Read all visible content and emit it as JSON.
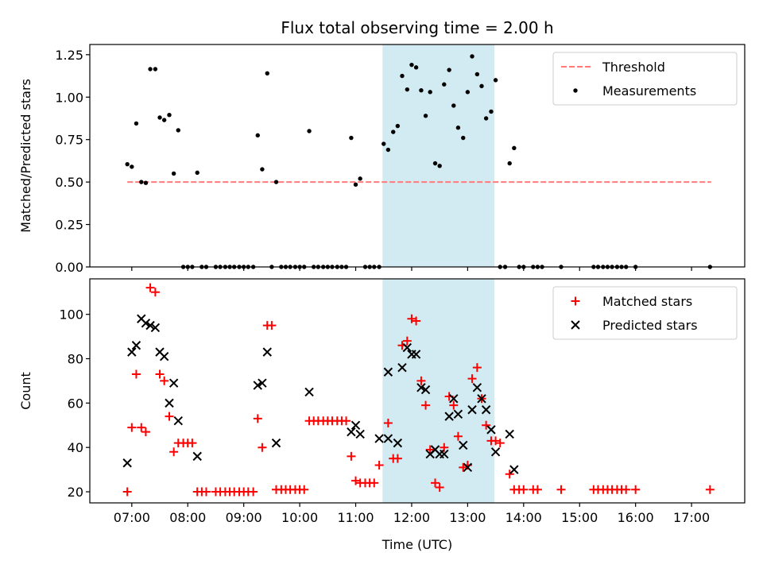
{
  "chart_data": [
    {
      "type": "scatter",
      "title": "Flux total observing time = 2.00 h",
      "xlabel": "",
      "ylabel": "Matched/Predicted stars",
      "x_unit": "hours_utc",
      "xlim": [
        6.25,
        17.95
      ],
      "ylim": [
        0.0,
        1.31
      ],
      "yticks": [
        0.0,
        0.25,
        0.5,
        0.75,
        1.0,
        1.25
      ],
      "ytick_labels": [
        "0.00",
        "0.25",
        "0.50",
        "0.75",
        "1.00",
        "1.25"
      ],
      "shaded_span": [
        11.48,
        13.48
      ],
      "legend": {
        "position": "top-right",
        "entries": [
          "Threshold",
          "Measurements"
        ]
      },
      "threshold": {
        "name": "Threshold",
        "x": [
          6.92,
          17.35
        ],
        "y": 0.5,
        "color": "#ff7b7b"
      },
      "series": [
        {
          "name": "Measurements",
          "marker": "dot",
          "color": "#000000",
          "points": [
            [
              6.92,
              0.605
            ],
            [
              7.0,
              0.59
            ],
            [
              7.08,
              0.845
            ],
            [
              7.17,
              0.5
            ],
            [
              7.25,
              0.495
            ],
            [
              7.33,
              1.165
            ],
            [
              7.42,
              1.165
            ],
            [
              7.5,
              0.88
            ],
            [
              7.58,
              0.865
            ],
            [
              7.67,
              0.895
            ],
            [
              7.75,
              0.55
            ],
            [
              7.83,
              0.805
            ],
            [
              7.92,
              0.0
            ],
            [
              8.0,
              0.0
            ],
            [
              8.08,
              0.0
            ],
            [
              8.17,
              0.555
            ],
            [
              8.25,
              0.0
            ],
            [
              8.33,
              0.0
            ],
            [
              8.5,
              0.0
            ],
            [
              8.58,
              0.0
            ],
            [
              8.67,
              0.0
            ],
            [
              8.75,
              0.0
            ],
            [
              8.83,
              0.0
            ],
            [
              8.92,
              0.0
            ],
            [
              9.0,
              0.0
            ],
            [
              9.08,
              0.0
            ],
            [
              9.17,
              0.0
            ],
            [
              9.25,
              0.775
            ],
            [
              9.33,
              0.575
            ],
            [
              9.42,
              1.14
            ],
            [
              9.5,
              0.0
            ],
            [
              9.58,
              0.5
            ],
            [
              9.67,
              0.0
            ],
            [
              9.75,
              0.0
            ],
            [
              9.83,
              0.0
            ],
            [
              9.92,
              0.0
            ],
            [
              10.0,
              0.0
            ],
            [
              10.08,
              0.0
            ],
            [
              10.17,
              0.8
            ],
            [
              10.25,
              0.0
            ],
            [
              10.33,
              0.0
            ],
            [
              10.42,
              0.0
            ],
            [
              10.5,
              0.0
            ],
            [
              10.58,
              0.0
            ],
            [
              10.67,
              0.0
            ],
            [
              10.75,
              0.0
            ],
            [
              10.83,
              0.0
            ],
            [
              10.92,
              0.76
            ],
            [
              11.0,
              0.485
            ],
            [
              11.08,
              0.52
            ],
            [
              11.17,
              0.0
            ],
            [
              11.25,
              0.0
            ],
            [
              11.33,
              0.0
            ],
            [
              11.42,
              0.0
            ],
            [
              11.5,
              0.725
            ],
            [
              11.58,
              0.69
            ],
            [
              11.67,
              0.795
            ],
            [
              11.75,
              0.83
            ],
            [
              11.83,
              1.125
            ],
            [
              11.92,
              1.045
            ],
            [
              12.0,
              1.19
            ],
            [
              12.08,
              1.175
            ],
            [
              12.17,
              1.04
            ],
            [
              12.25,
              0.89
            ],
            [
              12.33,
              1.03
            ],
            [
              12.42,
              0.61
            ],
            [
              12.5,
              0.595
            ],
            [
              12.58,
              1.075
            ],
            [
              12.67,
              1.16
            ],
            [
              12.75,
              0.95
            ],
            [
              12.83,
              0.82
            ],
            [
              12.92,
              0.76
            ],
            [
              13.0,
              1.03
            ],
            [
              13.08,
              1.24
            ],
            [
              13.17,
              1.135
            ],
            [
              13.25,
              1.065
            ],
            [
              13.33,
              0.875
            ],
            [
              13.42,
              0.915
            ],
            [
              13.5,
              1.1
            ],
            [
              13.58,
              0.0
            ],
            [
              13.67,
              0.0
            ],
            [
              13.75,
              0.61
            ],
            [
              13.83,
              0.7
            ],
            [
              13.92,
              0.0
            ],
            [
              14.0,
              0.0
            ],
            [
              14.17,
              0.0
            ],
            [
              14.25,
              0.0
            ],
            [
              14.33,
              0.0
            ],
            [
              14.67,
              0.0
            ],
            [
              15.25,
              0.0
            ],
            [
              15.33,
              0.0
            ],
            [
              15.42,
              0.0
            ],
            [
              15.5,
              0.0
            ],
            [
              15.58,
              0.0
            ],
            [
              15.67,
              0.0
            ],
            [
              15.75,
              0.0
            ],
            [
              15.83,
              0.0
            ],
            [
              16.0,
              0.0
            ],
            [
              17.33,
              0.0
            ]
          ]
        }
      ]
    },
    {
      "type": "scatter",
      "title": "",
      "xlabel": "Time (UTC)",
      "ylabel": "Count",
      "x_unit": "hours_utc",
      "xlim": [
        6.25,
        17.95
      ],
      "ylim": [
        15.0,
        116.0
      ],
      "yticks": [
        20,
        40,
        60,
        80,
        100
      ],
      "ytick_labels": [
        "20",
        "40",
        "60",
        "80",
        "100"
      ],
      "xticks": [
        7,
        8,
        9,
        10,
        11,
        12,
        13,
        14,
        15,
        16,
        17
      ],
      "xtick_labels": [
        "07:00",
        "08:00",
        "09:00",
        "10:00",
        "11:00",
        "12:00",
        "13:00",
        "14:00",
        "15:00",
        "16:00",
        "17:00"
      ],
      "shaded_span": [
        11.48,
        13.48
      ],
      "legend": {
        "position": "top-right",
        "entries": [
          "Matched stars",
          "Predicted stars"
        ]
      },
      "series": [
        {
          "name": "Matched stars",
          "marker": "plus",
          "color": "#ff0000",
          "points": [
            [
              6.92,
              20
            ],
            [
              7.0,
              49
            ],
            [
              7.08,
              73
            ],
            [
              7.17,
              49
            ],
            [
              7.25,
              47
            ],
            [
              7.33,
              112
            ],
            [
              7.42,
              110
            ],
            [
              7.5,
              73
            ],
            [
              7.58,
              70
            ],
            [
              7.67,
              54
            ],
            [
              7.75,
              38
            ],
            [
              7.83,
              42
            ],
            [
              7.92,
              42
            ],
            [
              8.0,
              42
            ],
            [
              8.08,
              42
            ],
            [
              8.17,
              20
            ],
            [
              8.25,
              20
            ],
            [
              8.33,
              20
            ],
            [
              8.5,
              20
            ],
            [
              8.58,
              20
            ],
            [
              8.67,
              20
            ],
            [
              8.75,
              20
            ],
            [
              8.83,
              20
            ],
            [
              8.92,
              20
            ],
            [
              9.0,
              20
            ],
            [
              9.08,
              20
            ],
            [
              9.17,
              20
            ],
            [
              9.25,
              53
            ],
            [
              9.33,
              40
            ],
            [
              9.42,
              95
            ],
            [
              9.5,
              95
            ],
            [
              9.58,
              21
            ],
            [
              9.67,
              21
            ],
            [
              9.75,
              21
            ],
            [
              9.83,
              21
            ],
            [
              9.92,
              21
            ],
            [
              10.0,
              21
            ],
            [
              10.08,
              21
            ],
            [
              10.17,
              52
            ],
            [
              10.25,
              52
            ],
            [
              10.33,
              52
            ],
            [
              10.42,
              52
            ],
            [
              10.5,
              52
            ],
            [
              10.58,
              52
            ],
            [
              10.67,
              52
            ],
            [
              10.75,
              52
            ],
            [
              10.83,
              52
            ],
            [
              10.92,
              36
            ],
            [
              11.0,
              25
            ],
            [
              11.08,
              24
            ],
            [
              11.17,
              24
            ],
            [
              11.25,
              24
            ],
            [
              11.33,
              24
            ],
            [
              11.42,
              32
            ],
            [
              11.58,
              51
            ],
            [
              11.67,
              35
            ],
            [
              11.75,
              35
            ],
            [
              11.83,
              86
            ],
            [
              11.92,
              88
            ],
            [
              12.0,
              98
            ],
            [
              12.08,
              97
            ],
            [
              12.17,
              70
            ],
            [
              12.25,
              59
            ],
            [
              12.33,
              39
            ],
            [
              12.42,
              24
            ],
            [
              12.5,
              22
            ],
            [
              12.58,
              40
            ],
            [
              12.67,
              63
            ],
            [
              12.75,
              59
            ],
            [
              12.83,
              45
            ],
            [
              12.92,
              31
            ],
            [
              13.0,
              32
            ],
            [
              13.08,
              71
            ],
            [
              13.17,
              76
            ],
            [
              13.25,
              62
            ],
            [
              13.33,
              50
            ],
            [
              13.42,
              43
            ],
            [
              13.5,
              43
            ],
            [
              13.58,
              42
            ],
            [
              13.75,
              28
            ],
            [
              13.83,
              21
            ],
            [
              13.92,
              21
            ],
            [
              14.0,
              21
            ],
            [
              14.17,
              21
            ],
            [
              14.25,
              21
            ],
            [
              14.67,
              21
            ],
            [
              15.25,
              21
            ],
            [
              15.33,
              21
            ],
            [
              15.42,
              21
            ],
            [
              15.5,
              21
            ],
            [
              15.58,
              21
            ],
            [
              15.67,
              21
            ],
            [
              15.75,
              21
            ],
            [
              15.83,
              21
            ],
            [
              16.0,
              21
            ],
            [
              17.33,
              21
            ]
          ]
        },
        {
          "name": "Predicted stars",
          "marker": "x",
          "color": "#000000",
          "points": [
            [
              6.92,
              33
            ],
            [
              7.0,
              83
            ],
            [
              7.08,
              86
            ],
            [
              7.17,
              98
            ],
            [
              7.25,
              96
            ],
            [
              7.33,
              95
            ],
            [
              7.42,
              94
            ],
            [
              7.5,
              83
            ],
            [
              7.58,
              81
            ],
            [
              7.67,
              60
            ],
            [
              7.75,
              69
            ],
            [
              7.83,
              52
            ],
            [
              8.17,
              36
            ],
            [
              9.25,
              68
            ],
            [
              9.33,
              69
            ],
            [
              9.42,
              83
            ],
            [
              9.58,
              42
            ],
            [
              10.17,
              65
            ],
            [
              10.92,
              47
            ],
            [
              11.0,
              50
            ],
            [
              11.08,
              46
            ],
            [
              11.42,
              44
            ],
            [
              11.58,
              74
            ],
            [
              11.58,
              44
            ],
            [
              11.75,
              42
            ],
            [
              11.83,
              76
            ],
            [
              11.92,
              85
            ],
            [
              12.0,
              82
            ],
            [
              12.08,
              82
            ],
            [
              12.17,
              67
            ],
            [
              12.25,
              66
            ],
            [
              12.33,
              37
            ],
            [
              12.42,
              39
            ],
            [
              12.5,
              37
            ],
            [
              12.58,
              37
            ],
            [
              12.67,
              54
            ],
            [
              12.75,
              62
            ],
            [
              12.83,
              55
            ],
            [
              12.92,
              41
            ],
            [
              13.0,
              31
            ],
            [
              13.08,
              57
            ],
            [
              13.17,
              67
            ],
            [
              13.25,
              62
            ],
            [
              13.33,
              57
            ],
            [
              13.42,
              48
            ],
            [
              13.5,
              38
            ],
            [
              13.75,
              46
            ],
            [
              13.83,
              30
            ]
          ]
        }
      ]
    }
  ]
}
